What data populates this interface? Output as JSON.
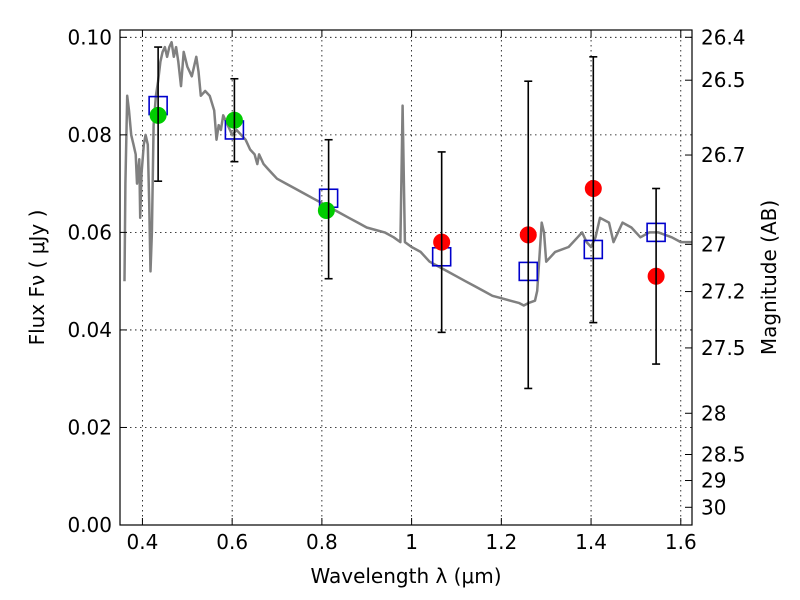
{
  "chart_data": {
    "type": "scatter",
    "xlabel": "Wavelength  λ (μm)",
    "ylabel": "Flux  Fν  ( μJy )",
    "y2label": "Magnitude (AB)",
    "xlim": [
      0.35,
      1.625
    ],
    "ylim": [
      0.0,
      0.1015
    ],
    "grid": true,
    "x_ticks": [
      {
        "value": 0.4,
        "label": "0.4"
      },
      {
        "value": 0.6,
        "label": "0.6"
      },
      {
        "value": 0.8,
        "label": "0.8"
      },
      {
        "value": 1.0,
        "label": "1"
      },
      {
        "value": 1.2,
        "label": "1.2"
      },
      {
        "value": 1.4,
        "label": "1.4"
      },
      {
        "value": 1.6,
        "label": "1.6"
      }
    ],
    "y_ticks": [
      {
        "value": 0.0,
        "label": "0.00"
      },
      {
        "value": 0.02,
        "label": "0.02"
      },
      {
        "value": 0.04,
        "label": "0.04"
      },
      {
        "value": 0.06,
        "label": "0.06"
      },
      {
        "value": 0.08,
        "label": "0.08"
      },
      {
        "value": 0.1,
        "label": "0.10"
      }
    ],
    "y2_ticks": [
      {
        "value": 26.4,
        "label": "26.4"
      },
      {
        "value": 26.5,
        "label": "26.5"
      },
      {
        "value": 26.7,
        "label": "26.7"
      },
      {
        "value": 27.0,
        "label": "27"
      },
      {
        "value": 27.2,
        "label": "27.2"
      },
      {
        "value": 27.5,
        "label": "27.5"
      },
      {
        "value": 28.0,
        "label": "28"
      },
      {
        "value": 28.5,
        "label": "28.5"
      },
      {
        "value": 29.0,
        "label": "29"
      },
      {
        "value": 30.0,
        "label": "30"
      }
    ],
    "series": [
      {
        "kind": "line",
        "color": "#808080",
        "points": [
          [
            0.36,
            0.05
          ],
          [
            0.362,
            0.07
          ],
          [
            0.366,
            0.088
          ],
          [
            0.37,
            0.085
          ],
          [
            0.375,
            0.08
          ],
          [
            0.38,
            0.078
          ],
          [
            0.385,
            0.076
          ],
          [
            0.388,
            0.07
          ],
          [
            0.393,
            0.075
          ],
          [
            0.395,
            0.063
          ],
          [
            0.398,
            0.072
          ],
          [
            0.403,
            0.078
          ],
          [
            0.407,
            0.08
          ],
          [
            0.412,
            0.078
          ],
          [
            0.415,
            0.066
          ],
          [
            0.418,
            0.052
          ],
          [
            0.421,
            0.06
          ],
          [
            0.425,
            0.082
          ],
          [
            0.43,
            0.088
          ],
          [
            0.435,
            0.091
          ],
          [
            0.44,
            0.095
          ],
          [
            0.445,
            0.097
          ],
          [
            0.45,
            0.098
          ],
          [
            0.455,
            0.096
          ],
          [
            0.46,
            0.098
          ],
          [
            0.465,
            0.099
          ],
          [
            0.47,
            0.096
          ],
          [
            0.475,
            0.098
          ],
          [
            0.48,
            0.095
          ],
          [
            0.486,
            0.09
          ],
          [
            0.492,
            0.097
          ],
          [
            0.5,
            0.094
          ],
          [
            0.51,
            0.092
          ],
          [
            0.52,
            0.096
          ],
          [
            0.525,
            0.093
          ],
          [
            0.53,
            0.088
          ],
          [
            0.54,
            0.089
          ],
          [
            0.55,
            0.088
          ],
          [
            0.56,
            0.085
          ],
          [
            0.565,
            0.079
          ],
          [
            0.57,
            0.082
          ],
          [
            0.575,
            0.081
          ],
          [
            0.58,
            0.084
          ],
          [
            0.59,
            0.082
          ],
          [
            0.6,
            0.08
          ],
          [
            0.61,
            0.081
          ],
          [
            0.62,
            0.08
          ],
          [
            0.63,
            0.079
          ],
          [
            0.64,
            0.077
          ],
          [
            0.65,
            0.076
          ],
          [
            0.656,
            0.074
          ],
          [
            0.66,
            0.076
          ],
          [
            0.67,
            0.074
          ],
          [
            0.68,
            0.073
          ],
          [
            0.69,
            0.072
          ],
          [
            0.7,
            0.071
          ],
          [
            0.72,
            0.07
          ],
          [
            0.74,
            0.069
          ],
          [
            0.76,
            0.068
          ],
          [
            0.78,
            0.067
          ],
          [
            0.8,
            0.066
          ],
          [
            0.82,
            0.065
          ],
          [
            0.84,
            0.064
          ],
          [
            0.86,
            0.063
          ],
          [
            0.88,
            0.062
          ],
          [
            0.9,
            0.061
          ],
          [
            0.92,
            0.0605
          ],
          [
            0.94,
            0.06
          ],
          [
            0.96,
            0.059
          ],
          [
            0.975,
            0.058
          ],
          [
            0.98,
            0.086
          ],
          [
            0.985,
            0.058
          ],
          [
            1.0,
            0.057
          ],
          [
            1.02,
            0.056
          ],
          [
            1.04,
            0.054
          ],
          [
            1.06,
            0.053
          ],
          [
            1.08,
            0.052
          ],
          [
            1.1,
            0.051
          ],
          [
            1.12,
            0.05
          ],
          [
            1.14,
            0.049
          ],
          [
            1.16,
            0.048
          ],
          [
            1.18,
            0.047
          ],
          [
            1.2,
            0.0465
          ],
          [
            1.22,
            0.046
          ],
          [
            1.24,
            0.0455
          ],
          [
            1.25,
            0.045
          ],
          [
            1.26,
            0.0455
          ],
          [
            1.275,
            0.046
          ],
          [
            1.28,
            0.048
          ],
          [
            1.29,
            0.062
          ],
          [
            1.295,
            0.06
          ],
          [
            1.3,
            0.054
          ],
          [
            1.32,
            0.056
          ],
          [
            1.35,
            0.057
          ],
          [
            1.37,
            0.059
          ],
          [
            1.38,
            0.06
          ],
          [
            1.39,
            0.058
          ],
          [
            1.4,
            0.057
          ],
          [
            1.41,
            0.059
          ],
          [
            1.42,
            0.063
          ],
          [
            1.44,
            0.062
          ],
          [
            1.45,
            0.058
          ],
          [
            1.46,
            0.06
          ],
          [
            1.47,
            0.062
          ],
          [
            1.49,
            0.061
          ],
          [
            1.51,
            0.059
          ],
          [
            1.53,
            0.06
          ],
          [
            1.55,
            0.06
          ],
          [
            1.58,
            0.059
          ],
          [
            1.6,
            0.058
          ],
          [
            1.625,
            0.058
          ]
        ]
      },
      {
        "kind": "open-square",
        "color": "#0000cc",
        "points": [
          [
            0.435,
            0.086
          ],
          [
            0.605,
            0.081
          ],
          [
            0.815,
            0.067
          ],
          [
            1.067,
            0.055
          ],
          [
            1.26,
            0.052
          ],
          [
            1.405,
            0.0565
          ],
          [
            1.545,
            0.06
          ]
        ]
      },
      {
        "kind": "filled-circle",
        "color": "#00cc00",
        "points": [
          [
            0.435,
            0.084
          ],
          [
            0.605,
            0.083
          ],
          [
            0.81,
            0.0645
          ]
        ]
      },
      {
        "kind": "filled-circle",
        "color": "#ff0000",
        "points": [
          [
            1.067,
            0.058
          ],
          [
            1.26,
            0.0595
          ],
          [
            1.405,
            0.069
          ],
          [
            1.545,
            0.051
          ]
        ]
      },
      {
        "kind": "errorbar",
        "color": "#000000",
        "points": [
          [
            0.435,
            0.0705,
            0.098
          ],
          [
            0.605,
            0.0745,
            0.0915
          ],
          [
            0.815,
            0.0505,
            0.079
          ],
          [
            1.067,
            0.0395,
            0.0765
          ],
          [
            1.26,
            0.028,
            0.091
          ],
          [
            1.405,
            0.0415,
            0.096
          ],
          [
            1.545,
            0.033,
            0.069
          ]
        ]
      }
    ]
  }
}
